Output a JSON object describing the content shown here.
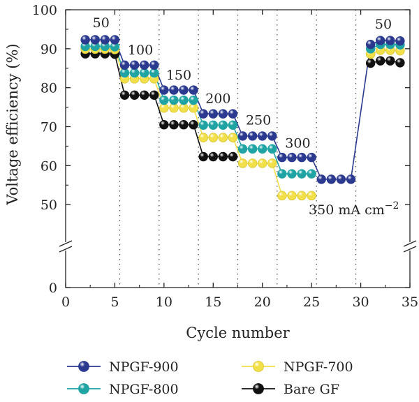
{
  "chart_data": {
    "type": "line",
    "title": "",
    "xlabel": "Cycle number",
    "ylabel": "Voltage efficiency (%)",
    "xlim": [
      0,
      35
    ],
    "ylim_lower": [
      0,
      5
    ],
    "ylim_upper": [
      40,
      100
    ],
    "axis_break": true,
    "x_ticks": [
      0,
      5,
      10,
      15,
      20,
      25,
      30,
      35
    ],
    "y_ticks": [
      0,
      50,
      60,
      70,
      80,
      90,
      100
    ],
    "vertical_dotted_lines": [
      5.5,
      9.5,
      13.5,
      17.5,
      21.5,
      25.5,
      29.5
    ],
    "grid": false,
    "legend_position": "bottom",
    "x": [
      2,
      3,
      4,
      5,
      6,
      7,
      8,
      9,
      10,
      11,
      12,
      13,
      14,
      15,
      16,
      17,
      18,
      19,
      20,
      21,
      22,
      23,
      24,
      25,
      26,
      27,
      28,
      29,
      31,
      32,
      33,
      34
    ],
    "series": [
      {
        "name": "NPGF-900",
        "color": "#2b3a8f",
        "values": [
          92.3,
          92.3,
          92.3,
          92.3,
          85.8,
          85.8,
          85.8,
          85.8,
          79.4,
          79.4,
          79.4,
          79.4,
          73.3,
          73.3,
          73.3,
          73.3,
          67.6,
          67.6,
          67.6,
          67.6,
          62.1,
          62.1,
          62.1,
          62.1,
          56.5,
          56.5,
          56.5,
          56.5,
          91.1,
          92.1,
          92.1,
          92.0
        ]
      },
      {
        "name": "NPGF-800",
        "color": "#1fa3a3",
        "values": [
          90.6,
          90.6,
          90.6,
          90.5,
          83.8,
          83.8,
          83.8,
          83.8,
          76.8,
          76.8,
          76.8,
          76.8,
          70.4,
          70.4,
          70.4,
          70.4,
          64.3,
          64.3,
          64.3,
          64.3,
          57.9,
          57.9,
          57.9,
          57.9,
          null,
          null,
          null,
          null,
          90.0,
          91.1,
          91.1,
          91.0
        ]
      },
      {
        "name": "NPGF-700",
        "color": "#f2e04a",
        "values": [
          89.9,
          89.9,
          89.9,
          89.8,
          82.3,
          82.3,
          82.3,
          82.3,
          74.8,
          74.8,
          74.8,
          74.8,
          67.2,
          67.2,
          67.2,
          67.2,
          60.6,
          60.6,
          60.6,
          60.6,
          52.3,
          52.3,
          52.3,
          52.3,
          null,
          null,
          null,
          null,
          88.6,
          89.6,
          89.6,
          89.5
        ]
      },
      {
        "name": "Bare GF",
        "color": "#111111",
        "values": [
          88.7,
          88.7,
          88.7,
          88.6,
          78.1,
          78.1,
          78.1,
          78.1,
          70.5,
          70.5,
          70.5,
          70.5,
          62.3,
          62.3,
          62.3,
          62.3,
          null,
          null,
          null,
          null,
          null,
          null,
          null,
          null,
          null,
          null,
          null,
          null,
          86.3,
          86.9,
          86.9,
          86.4
        ]
      }
    ],
    "annotations": [
      {
        "text": "50",
        "x": 3.6,
        "y": 95.5
      },
      {
        "text": "100",
        "x": 7.6,
        "y": 88.5
      },
      {
        "text": "150",
        "x": 11.5,
        "y": 82.1
      },
      {
        "text": "200",
        "x": 15.5,
        "y": 76.1
      },
      {
        "text": "250",
        "x": 19.6,
        "y": 70.5
      },
      {
        "text": "300",
        "x": 23.6,
        "y": 64.6
      },
      {
        "text": "350 mA cm−2",
        "x": 29.3,
        "y": 47.5
      },
      {
        "text": "50",
        "x": 32.3,
        "y": 95.2
      }
    ]
  }
}
